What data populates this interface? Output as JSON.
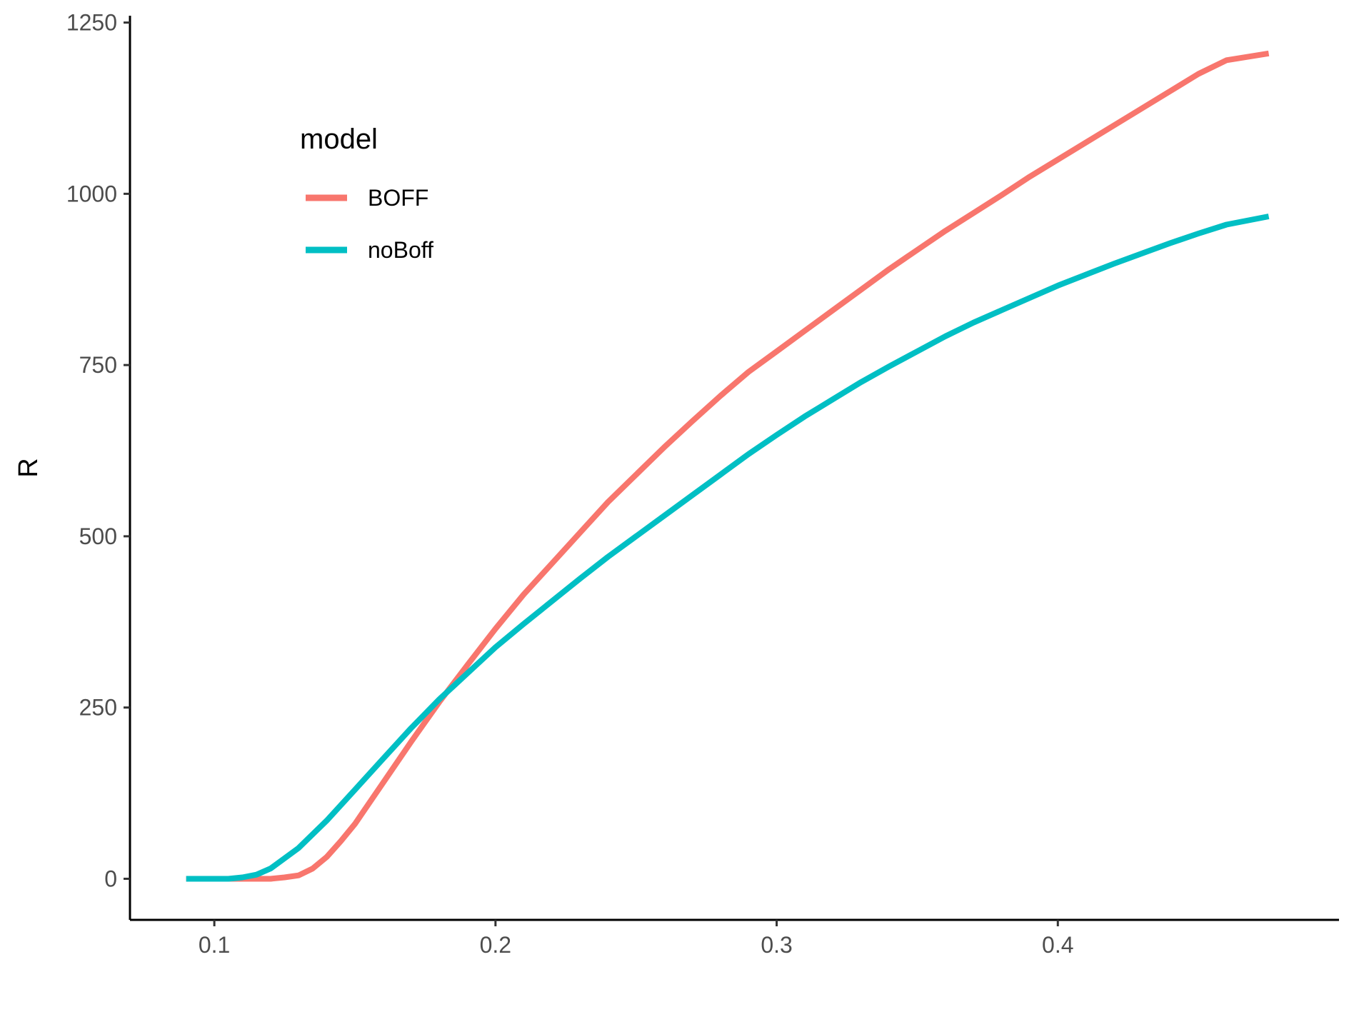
{
  "chart_data": {
    "type": "line",
    "title": "",
    "xlabel": "",
    "ylabel": "R",
    "xlim": [
      0.07,
      0.5
    ],
    "ylim": [
      -60,
      1260
    ],
    "x_ticks": [
      {
        "value": 0.1,
        "label": "0.1"
      },
      {
        "value": 0.2,
        "label": "0.2"
      },
      {
        "value": 0.3,
        "label": "0.3"
      },
      {
        "value": 0.4,
        "label": "0.4"
      }
    ],
    "y_ticks": [
      {
        "value": 0,
        "label": "0"
      },
      {
        "value": 250,
        "label": "250"
      },
      {
        "value": 500,
        "label": "500"
      },
      {
        "value": 750,
        "label": "750"
      },
      {
        "value": 1000,
        "label": "1000"
      },
      {
        "value": 1250,
        "label": "1250"
      }
    ],
    "grid": false,
    "legend": {
      "title": "model",
      "placement": "top-left"
    },
    "series": [
      {
        "name": "BOFF",
        "color": "#F8766D",
        "points": [
          [
            0.09,
            0
          ],
          [
            0.1,
            0
          ],
          [
            0.11,
            0
          ],
          [
            0.12,
            0
          ],
          [
            0.125,
            2
          ],
          [
            0.13,
            5
          ],
          [
            0.135,
            15
          ],
          [
            0.14,
            32
          ],
          [
            0.145,
            55
          ],
          [
            0.15,
            80
          ],
          [
            0.16,
            140
          ],
          [
            0.17,
            200
          ],
          [
            0.18,
            258
          ],
          [
            0.19,
            312
          ],
          [
            0.2,
            365
          ],
          [
            0.21,
            415
          ],
          [
            0.22,
            460
          ],
          [
            0.23,
            505
          ],
          [
            0.24,
            550
          ],
          [
            0.25,
            590
          ],
          [
            0.26,
            630
          ],
          [
            0.27,
            668
          ],
          [
            0.28,
            705
          ],
          [
            0.29,
            740
          ],
          [
            0.3,
            770
          ],
          [
            0.31,
            800
          ],
          [
            0.32,
            830
          ],
          [
            0.33,
            860
          ],
          [
            0.34,
            890
          ],
          [
            0.35,
            918
          ],
          [
            0.36,
            946
          ],
          [
            0.37,
            972
          ],
          [
            0.38,
            998
          ],
          [
            0.39,
            1025
          ],
          [
            0.4,
            1050
          ],
          [
            0.41,
            1075
          ],
          [
            0.42,
            1100
          ],
          [
            0.43,
            1125
          ],
          [
            0.44,
            1150
          ],
          [
            0.45,
            1175
          ],
          [
            0.46,
            1195
          ],
          [
            0.475,
            1205
          ]
        ]
      },
      {
        "name": "noBoff",
        "color": "#00BFC4",
        "points": [
          [
            0.09,
            0
          ],
          [
            0.1,
            0
          ],
          [
            0.105,
            0
          ],
          [
            0.11,
            2
          ],
          [
            0.115,
            6
          ],
          [
            0.12,
            15
          ],
          [
            0.13,
            45
          ],
          [
            0.14,
            85
          ],
          [
            0.15,
            130
          ],
          [
            0.16,
            175
          ],
          [
            0.17,
            220
          ],
          [
            0.18,
            262
          ],
          [
            0.19,
            300
          ],
          [
            0.2,
            338
          ],
          [
            0.21,
            372
          ],
          [
            0.22,
            405
          ],
          [
            0.23,
            438
          ],
          [
            0.24,
            470
          ],
          [
            0.25,
            500
          ],
          [
            0.26,
            530
          ],
          [
            0.27,
            560
          ],
          [
            0.28,
            590
          ],
          [
            0.29,
            620
          ],
          [
            0.3,
            648
          ],
          [
            0.31,
            675
          ],
          [
            0.32,
            700
          ],
          [
            0.33,
            725
          ],
          [
            0.34,
            748
          ],
          [
            0.35,
            770
          ],
          [
            0.36,
            792
          ],
          [
            0.37,
            812
          ],
          [
            0.38,
            830
          ],
          [
            0.39,
            848
          ],
          [
            0.4,
            866
          ],
          [
            0.41,
            882
          ],
          [
            0.42,
            898
          ],
          [
            0.43,
            913
          ],
          [
            0.44,
            928
          ],
          [
            0.45,
            942
          ],
          [
            0.46,
            955
          ],
          [
            0.475,
            967
          ]
        ]
      }
    ]
  }
}
